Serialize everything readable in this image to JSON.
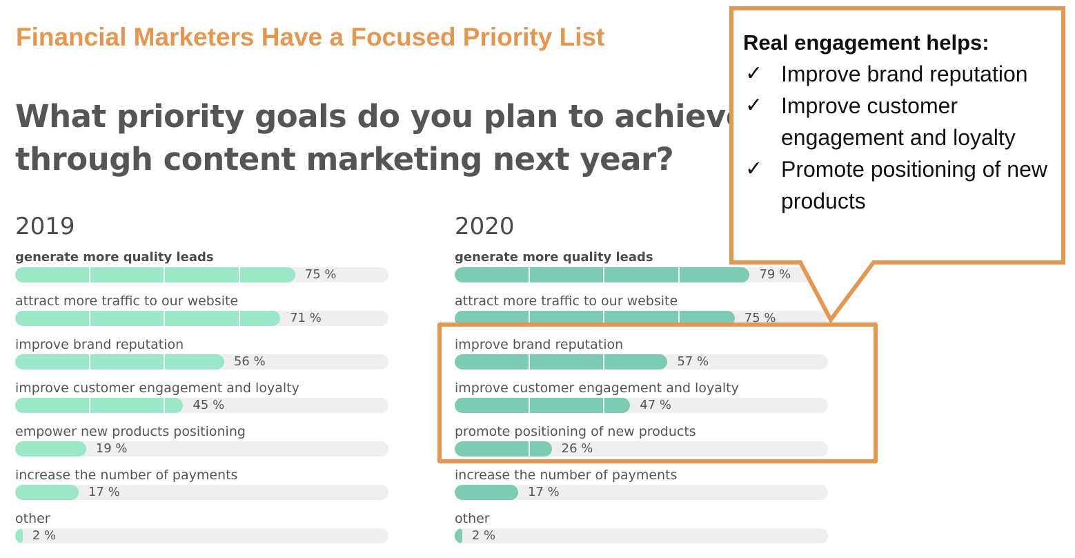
{
  "slide": {
    "title": "Financial Marketers Have a Focused Priority List",
    "title_color": "#e5974f"
  },
  "question": {
    "line1": "What priority goals do you plan to achieve",
    "line2": "through content marketing next year?"
  },
  "chart_data": [
    {
      "type": "bar",
      "orientation": "horizontal",
      "title": "2019",
      "categories": [
        "generate more quality leads",
        "attract more traffic to our website",
        "improve brand reputation",
        "improve customer engagement and loyalty",
        "empower new products positioning",
        "increase the number of payments",
        "other"
      ],
      "values": [
        75,
        71,
        56,
        45,
        19,
        17,
        2
      ],
      "value_labels": [
        "75 %",
        "71 %",
        "56 %",
        "45 %",
        "19 %",
        "17 %",
        "2 %"
      ],
      "xlim": [
        0,
        100
      ],
      "unit": "%",
      "color": "#9ce7c7"
    },
    {
      "type": "bar",
      "orientation": "horizontal",
      "title": "2020",
      "categories": [
        "generate more quality leads",
        "attract more traffic to our website",
        "improve brand reputation",
        "improve customer engagement and loyalty",
        "promote positioning of new products",
        "increase the number of payments",
        "other"
      ],
      "values": [
        79,
        75,
        57,
        47,
        26,
        17,
        2
      ],
      "value_labels": [
        "79 %",
        "75 %",
        "57 %",
        "47 %",
        "26 %",
        "17 %",
        "2 %"
      ],
      "xlim": [
        0,
        100
      ],
      "unit": "%",
      "color": "#7ccbb2",
      "highlighted_categories": [
        2,
        3,
        4
      ]
    }
  ],
  "callout": {
    "heading": "Real engagement helps:",
    "check_glyph": "✓",
    "items": [
      "Improve brand reputation",
      "Improve customer engagement and loyalty",
      "Promote positioning of new products"
    ],
    "border_color": "#e5974f"
  }
}
